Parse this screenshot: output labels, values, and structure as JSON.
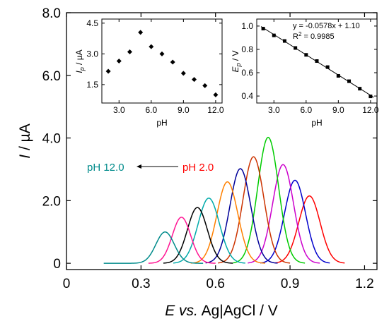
{
  "chart_data": [
    {
      "type": "line",
      "name": "main",
      "xlabel": "E vs. Ag|AgCl / V",
      "ylabel": "I / µA",
      "xlim": [
        0,
        1.25
      ],
      "ylim": [
        -0.2,
        8.0
      ],
      "xticks": [
        0,
        0.3,
        0.6,
        0.9,
        1.2
      ],
      "xtick_labels": [
        "0",
        "0.3",
        "0.6",
        "0.9",
        "1.2"
      ],
      "yticks": [
        0,
        2,
        4,
        6,
        8
      ],
      "ytick_labels": [
        "0",
        "2.0",
        "4.0",
        "6.0",
        "8.0"
      ],
      "grid": false,
      "series": [
        {
          "color": "#ff0000",
          "peak_x": 0.978,
          "peak_y": 2.15,
          "sigma": 0.043,
          "x_range": [
            0.84,
            1.12
          ]
        },
        {
          "color": "#0000cc",
          "peak_x": 0.92,
          "peak_y": 2.65,
          "sigma": 0.042,
          "x_range": [
            0.78,
            1.06
          ]
        },
        {
          "color": "#cc00cc",
          "peak_x": 0.872,
          "peak_y": 3.15,
          "sigma": 0.042,
          "x_range": [
            0.73,
            1.02
          ]
        },
        {
          "color": "#00cc00",
          "peak_x": 0.812,
          "peak_y": 4.02,
          "sigma": 0.042,
          "x_range": [
            0.67,
            0.96
          ]
        },
        {
          "color": "#cc3300",
          "peak_x": 0.753,
          "peak_y": 3.4,
          "sigma": 0.042,
          "x_range": [
            0.61,
            0.9
          ]
        },
        {
          "color": "#000099",
          "peak_x": 0.7,
          "peak_y": 3.02,
          "sigma": 0.042,
          "x_range": [
            0.56,
            0.85
          ]
        },
        {
          "color": "#ff8000",
          "peak_x": 0.648,
          "peak_y": 2.6,
          "sigma": 0.042,
          "x_range": [
            0.5,
            0.8
          ]
        },
        {
          "color": "#00aaaa",
          "peak_x": 0.573,
          "peak_y": 2.08,
          "sigma": 0.043,
          "x_range": [
            0.43,
            0.72
          ]
        },
        {
          "color": "#000000",
          "peak_x": 0.527,
          "peak_y": 1.78,
          "sigma": 0.04,
          "x_range": [
            0.39,
            0.67
          ]
        },
        {
          "color": "#ff1493",
          "peak_x": 0.463,
          "peak_y": 1.47,
          "sigma": 0.037,
          "x_range": [
            0.33,
            0.6
          ]
        },
        {
          "color": "#008b8b",
          "peak_x": 0.397,
          "peak_y": 1.0,
          "sigma": 0.037,
          "x_range": [
            0.15,
            0.55
          ]
        }
      ],
      "annotations": {
        "left_label": {
          "text": "pH 12.0",
          "color": "#008b8b"
        },
        "right_label": {
          "text": "pH 2.0",
          "color": "#ff0000"
        }
      }
    },
    {
      "type": "scatter",
      "name": "inset-current",
      "xlabel": "pH",
      "ylabel": "Ip / µA",
      "xlim": [
        1.4,
        12.6
      ],
      "ylim": [
        0.6,
        4.7
      ],
      "xticks": [
        3,
        6,
        9,
        12
      ],
      "xtick_labels": [
        "3.0",
        "6.0",
        "9.0",
        "12.0"
      ],
      "yticks": [
        1.5,
        3.0,
        4.5
      ],
      "ytick_labels": [
        "1.5",
        "3.0",
        "4.5"
      ],
      "x": [
        2,
        3,
        4,
        5,
        6,
        7,
        8,
        9,
        10,
        11,
        12
      ],
      "y": [
        2.15,
        2.65,
        3.1,
        4.05,
        3.35,
        3.0,
        2.6,
        2.05,
        1.75,
        1.45,
        1.0
      ]
    },
    {
      "type": "scatter",
      "name": "inset-potential",
      "xlabel": "pH",
      "ylabel": "Ep / V",
      "xlim": [
        1.4,
        12.6
      ],
      "ylim": [
        0.34,
        1.06
      ],
      "xticks": [
        3,
        6,
        9,
        12
      ],
      "xtick_labels": [
        "3.0",
        "6.0",
        "9.0",
        "12.0"
      ],
      "yticks": [
        0.4,
        0.6,
        0.8,
        1.0
      ],
      "ytick_labels": [
        "0.4",
        "0.6",
        "0.8",
        "1.0"
      ],
      "x": [
        2,
        3,
        4,
        5,
        6,
        7,
        8,
        9,
        10,
        11,
        12
      ],
      "y": [
        0.978,
        0.92,
        0.872,
        0.812,
        0.753,
        0.7,
        0.648,
        0.573,
        0.527,
        0.463,
        0.397
      ],
      "fit": {
        "slope": -0.0578,
        "intercept": 1.1
      },
      "equation": "y = -0.0578x + 1.10",
      "r2_label": "R",
      "r2_sup": "2",
      "r2_value": " = 0.9985"
    }
  ]
}
